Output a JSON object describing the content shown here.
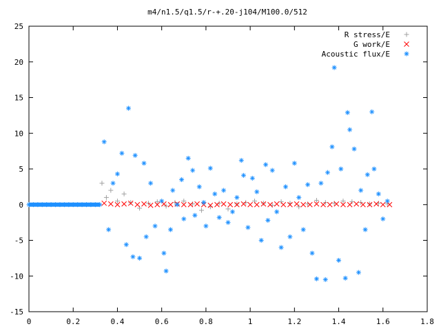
{
  "chart_data": {
    "type": "scatter",
    "title": "m4/n1.5/q1.5/r-+.20-j104/M100.0/512",
    "xlabel": "",
    "ylabel": "",
    "xlim": [
      0,
      1.8
    ],
    "ylim": [
      -15,
      25
    ],
    "x_ticks": [
      "0",
      "0.2",
      "0.4",
      "0.6",
      "0.8",
      "1",
      "1.2",
      "1.4",
      "1.6",
      "1.8"
    ],
    "y_ticks": [
      "-15",
      "-10",
      "-5",
      "0",
      "5",
      "10",
      "15",
      "20",
      "25"
    ],
    "x_tick_values": [
      0,
      0.2,
      0.4,
      0.6,
      0.8,
      1.0,
      1.2,
      1.4,
      1.6,
      1.8
    ],
    "y_tick_values": [
      -15,
      -10,
      -5,
      0,
      5,
      10,
      15,
      20,
      25
    ],
    "grid": false,
    "legend_position": "top-right",
    "series": [
      {
        "name": "R stress/E",
        "marker": "+",
        "color": "#a0a0a0",
        "x": [
          0.33,
          0.35,
          0.37,
          0.4,
          0.43,
          0.46,
          0.5,
          0.54,
          0.58,
          0.62,
          0.66,
          0.7,
          0.74,
          0.78,
          0.82,
          0.86,
          0.9,
          0.94,
          0.98,
          1.02,
          1.06,
          1.1,
          1.14,
          1.18,
          1.22,
          1.26,
          1.3,
          1.34,
          1.38,
          1.42,
          1.46,
          1.5,
          1.54,
          1.58,
          1.62
        ],
        "y": [
          3.0,
          1.0,
          2.0,
          0.5,
          1.5,
          0.3,
          -0.5,
          0.2,
          0.4,
          -0.2,
          0.3,
          0.5,
          0.1,
          -0.8,
          -0.3,
          0.2,
          -0.6,
          0.1,
          0.3,
          0.5,
          0.2,
          -0.1,
          0.4,
          0.2,
          -0.3,
          0.1,
          0.6,
          0.3,
          0.2,
          0.5,
          0.4,
          0.3,
          0.1,
          0.2,
          0.1
        ]
      },
      {
        "name": "G work/E",
        "marker": "x",
        "color": "#ff0000",
        "x": [
          0.34,
          0.37,
          0.4,
          0.43,
          0.46,
          0.49,
          0.52,
          0.55,
          0.58,
          0.61,
          0.64,
          0.67,
          0.7,
          0.73,
          0.76,
          0.79,
          0.82,
          0.85,
          0.88,
          0.91,
          0.94,
          0.97,
          1.0,
          1.03,
          1.06,
          1.09,
          1.12,
          1.15,
          1.18,
          1.21,
          1.24,
          1.27,
          1.3,
          1.33,
          1.36,
          1.39,
          1.42,
          1.45,
          1.48,
          1.51,
          1.54,
          1.57,
          1.6,
          1.63
        ],
        "y": [
          0.2,
          0.1,
          0.0,
          0.1,
          0.2,
          0.0,
          0.1,
          -0.1,
          0.0,
          0.1,
          0.0,
          0.1,
          0.0,
          0.0,
          0.1,
          0.0,
          -0.1,
          0.0,
          0.1,
          0.0,
          0.0,
          0.1,
          0.0,
          0.0,
          0.1,
          0.0,
          0.1,
          0.0,
          0.0,
          0.1,
          0.0,
          0.0,
          0.1,
          0.0,
          0.0,
          0.1,
          0.0,
          0.0,
          0.1,
          0.0,
          0.0,
          0.1,
          0.0,
          0.0
        ]
      },
      {
        "name": "Acoustic flux/E",
        "marker": "*",
        "color": "#1e90ff",
        "x": [
          0.34,
          0.36,
          0.38,
          0.4,
          0.42,
          0.44,
          0.45,
          0.47,
          0.48,
          0.5,
          0.52,
          0.53,
          0.55,
          0.57,
          0.6,
          0.61,
          0.62,
          0.64,
          0.65,
          0.67,
          0.69,
          0.7,
          0.72,
          0.74,
          0.75,
          0.77,
          0.79,
          0.8,
          0.82,
          0.84,
          0.86,
          0.88,
          0.9,
          0.92,
          0.94,
          0.96,
          0.97,
          0.99,
          1.01,
          1.03,
          1.05,
          1.07,
          1.08,
          1.1,
          1.12,
          1.14,
          1.16,
          1.18,
          1.2,
          1.22,
          1.24,
          1.26,
          1.28,
          1.3,
          1.32,
          1.34,
          1.35,
          1.37,
          1.38,
          1.4,
          1.41,
          1.43,
          1.44,
          1.45,
          1.47,
          1.49,
          1.5,
          1.52,
          1.53,
          1.55,
          1.56,
          1.58,
          1.6,
          1.62
        ],
        "y": [
          8.8,
          -3.5,
          3.0,
          4.3,
          7.2,
          -5.6,
          13.5,
          -7.3,
          6.9,
          -7.5,
          5.8,
          -4.5,
          3.0,
          -3.0,
          0.5,
          -6.8,
          -9.3,
          -3.5,
          2.0,
          0.0,
          3.5,
          -2.0,
          6.5,
          4.8,
          -1.5,
          2.5,
          0.3,
          -3.0,
          5.1,
          1.5,
          -1.8,
          2.0,
          -2.5,
          -1.0,
          1.0,
          6.2,
          4.1,
          -3.2,
          3.7,
          1.8,
          -5.0,
          5.6,
          -2.2,
          4.8,
          -1.0,
          -6.0,
          2.5,
          -4.5,
          5.8,
          1.0,
          -3.5,
          2.8,
          -6.8,
          -10.4,
          3.0,
          -10.5,
          4.5,
          8.1,
          19.2,
          -7.8,
          5.0,
          -10.3,
          12.9,
          10.5,
          7.8,
          -9.5,
          2.0,
          -3.5,
          4.2,
          13.0,
          5.0,
          1.5,
          -2.0,
          0.5
        ]
      },
      {
        "name": "",
        "marker": "*",
        "color": "#1e90ff",
        "x": [
          0.0,
          0.02,
          0.04,
          0.06,
          0.08,
          0.1,
          0.12,
          0.14,
          0.16,
          0.18,
          0.2,
          0.22,
          0.24,
          0.26,
          0.28,
          0.3,
          0.32
        ],
        "y": [
          0,
          0,
          0,
          0,
          0,
          0,
          0,
          0,
          0,
          0,
          0,
          0,
          0,
          0,
          0,
          0,
          0
        ]
      }
    ]
  }
}
